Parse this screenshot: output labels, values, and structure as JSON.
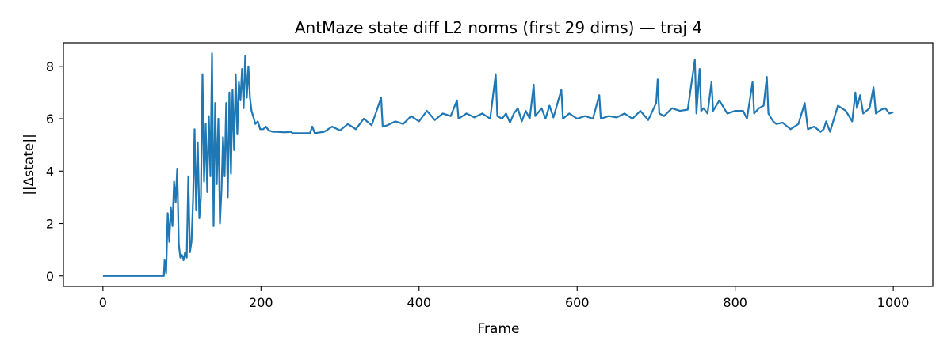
{
  "chart_data": {
    "type": "line",
    "title": "AntMaze state diff L2 norms (first 29 dims) — traj 4",
    "xlabel": "Frame",
    "ylabel": "||Δstate||",
    "xlim": [
      -50,
      1050
    ],
    "ylim": [
      -0.4,
      8.9
    ],
    "xticks": [
      0,
      200,
      400,
      600,
      800,
      1000
    ],
    "yticks": [
      0,
      2,
      4,
      6,
      8
    ],
    "grid": false,
    "legend": "none",
    "series": [
      {
        "color": "#1f77b4",
        "points": [
          [
            0,
            0
          ],
          [
            20,
            0
          ],
          [
            40,
            0
          ],
          [
            60,
            0
          ],
          [
            77,
            0
          ],
          [
            78,
            0.6
          ],
          [
            80,
            0.1
          ],
          [
            82,
            2.4
          ],
          [
            84,
            1.3
          ],
          [
            86,
            2.6
          ],
          [
            88,
            1.9
          ],
          [
            90,
            3.6
          ],
          [
            92,
            2.8
          ],
          [
            94,
            4.1
          ],
          [
            96,
            1.2
          ],
          [
            98,
            0.7
          ],
          [
            100,
            0.8
          ],
          [
            102,
            0.6
          ],
          [
            104,
            0.9
          ],
          [
            106,
            0.7
          ],
          [
            108,
            3.8
          ],
          [
            110,
            0.9
          ],
          [
            112,
            1.3
          ],
          [
            114,
            2.9
          ],
          [
            116,
            5.6
          ],
          [
            118,
            2.5
          ],
          [
            120,
            5.1
          ],
          [
            122,
            2.2
          ],
          [
            124,
            3.0
          ],
          [
            126,
            7.7
          ],
          [
            128,
            3.6
          ],
          [
            130,
            5.8
          ],
          [
            132,
            3.2
          ],
          [
            134,
            6.1
          ],
          [
            136,
            3.8
          ],
          [
            138,
            8.5
          ],
          [
            140,
            1.9
          ],
          [
            142,
            6.6
          ],
          [
            144,
            3.5
          ],
          [
            146,
            6.0
          ],
          [
            148,
            2.0
          ],
          [
            150,
            3.3
          ],
          [
            152,
            5.3
          ],
          [
            154,
            3.8
          ],
          [
            156,
            6.6
          ],
          [
            158,
            3.0
          ],
          [
            160,
            7.0
          ],
          [
            162,
            3.9
          ],
          [
            164,
            7.1
          ],
          [
            166,
            4.8
          ],
          [
            168,
            7.7
          ],
          [
            170,
            5.4
          ],
          [
            172,
            7.4
          ],
          [
            174,
            6.7
          ],
          [
            176,
            7.9
          ],
          [
            178,
            6.4
          ],
          [
            180,
            8.4
          ],
          [
            182,
            6.8
          ],
          [
            184,
            8.0
          ],
          [
            186,
            6.8
          ],
          [
            188,
            6.3
          ],
          [
            190,
            6.1
          ],
          [
            193,
            5.8
          ],
          [
            196,
            5.9
          ],
          [
            199,
            5.6
          ],
          [
            203,
            5.6
          ],
          [
            206,
            5.7
          ],
          [
            210,
            5.55
          ],
          [
            215,
            5.5
          ],
          [
            220,
            5.5
          ],
          [
            230,
            5.48
          ],
          [
            238,
            5.5
          ],
          [
            240,
            5.45
          ],
          [
            250,
            5.45
          ],
          [
            262,
            5.45
          ],
          [
            265,
            5.7
          ],
          [
            268,
            5.45
          ],
          [
            280,
            5.5
          ],
          [
            290,
            5.7
          ],
          [
            300,
            5.55
          ],
          [
            310,
            5.8
          ],
          [
            320,
            5.6
          ],
          [
            330,
            6.0
          ],
          [
            340,
            5.75
          ],
          [
            352,
            6.8
          ],
          [
            354,
            5.7
          ],
          [
            360,
            5.75
          ],
          [
            370,
            5.9
          ],
          [
            380,
            5.8
          ],
          [
            390,
            6.1
          ],
          [
            400,
            5.9
          ],
          [
            410,
            6.3
          ],
          [
            420,
            5.95
          ],
          [
            430,
            6.2
          ],
          [
            440,
            6.1
          ],
          [
            448,
            6.7
          ],
          [
            450,
            6.0
          ],
          [
            460,
            6.2
          ],
          [
            470,
            6.05
          ],
          [
            480,
            6.2
          ],
          [
            490,
            6.0
          ],
          [
            497,
            7.7
          ],
          [
            499,
            6.1
          ],
          [
            505,
            6.0
          ],
          [
            510,
            6.2
          ],
          [
            515,
            5.85
          ],
          [
            520,
            6.2
          ],
          [
            525,
            6.4
          ],
          [
            530,
            5.9
          ],
          [
            535,
            6.3
          ],
          [
            540,
            6.0
          ],
          [
            545,
            7.3
          ],
          [
            547,
            6.1
          ],
          [
            555,
            6.4
          ],
          [
            560,
            6.0
          ],
          [
            565,
            6.5
          ],
          [
            570,
            6.05
          ],
          [
            580,
            7.1
          ],
          [
            582,
            6.0
          ],
          [
            590,
            6.2
          ],
          [
            600,
            6.0
          ],
          [
            610,
            6.1
          ],
          [
            620,
            6.0
          ],
          [
            628,
            6.9
          ],
          [
            630,
            6.0
          ],
          [
            640,
            6.1
          ],
          [
            650,
            6.05
          ],
          [
            660,
            6.2
          ],
          [
            670,
            6.0
          ],
          [
            680,
            6.3
          ],
          [
            690,
            5.95
          ],
          [
            700,
            6.6
          ],
          [
            702,
            7.5
          ],
          [
            704,
            6.2
          ],
          [
            710,
            6.1
          ],
          [
            720,
            6.4
          ],
          [
            730,
            6.3
          ],
          [
            740,
            6.35
          ],
          [
            749,
            8.25
          ],
          [
            751,
            6.2
          ],
          [
            755,
            7.9
          ],
          [
            757,
            6.3
          ],
          [
            760,
            6.4
          ],
          [
            765,
            6.2
          ],
          [
            770,
            7.4
          ],
          [
            772,
            6.3
          ],
          [
            780,
            6.7
          ],
          [
            790,
            6.2
          ],
          [
            800,
            6.3
          ],
          [
            810,
            6.3
          ],
          [
            815,
            6.0
          ],
          [
            822,
            7.4
          ],
          [
            824,
            6.2
          ],
          [
            830,
            6.4
          ],
          [
            836,
            6.5
          ],
          [
            840,
            7.6
          ],
          [
            842,
            6.2
          ],
          [
            848,
            5.9
          ],
          [
            852,
            5.8
          ],
          [
            860,
            5.85
          ],
          [
            870,
            5.6
          ],
          [
            880,
            5.8
          ],
          [
            888,
            6.6
          ],
          [
            892,
            5.6
          ],
          [
            900,
            5.7
          ],
          [
            908,
            5.5
          ],
          [
            912,
            5.6
          ],
          [
            915,
            5.9
          ],
          [
            920,
            5.5
          ],
          [
            930,
            6.5
          ],
          [
            940,
            6.3
          ],
          [
            948,
            5.9
          ],
          [
            952,
            7.0
          ],
          [
            954,
            6.4
          ],
          [
            958,
            6.9
          ],
          [
            962,
            6.2
          ],
          [
            970,
            6.4
          ],
          [
            975,
            7.2
          ],
          [
            978,
            6.2
          ],
          [
            985,
            6.35
          ],
          [
            990,
            6.4
          ],
          [
            995,
            6.2
          ],
          [
            1000,
            6.25
          ]
        ]
      }
    ]
  }
}
